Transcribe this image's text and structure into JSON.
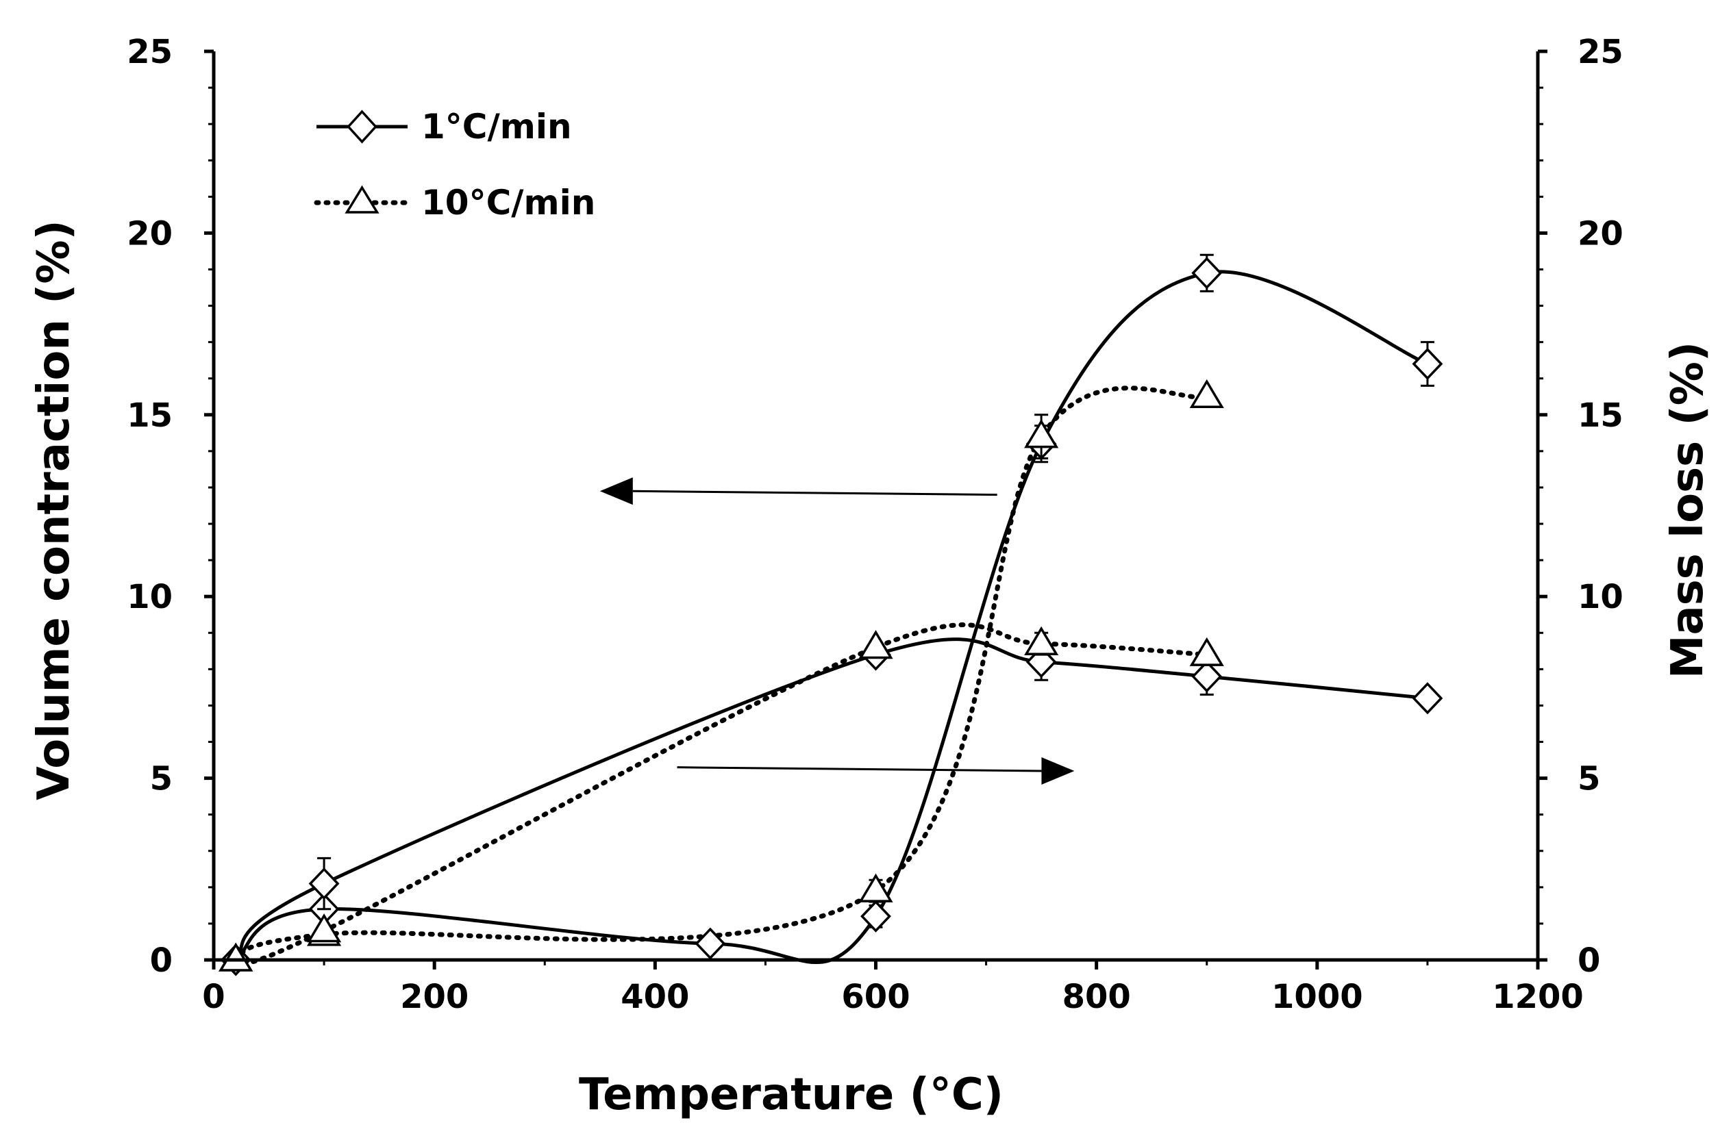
{
  "chart_data": {
    "type": "line",
    "title": "",
    "xlabel": "Temperature (°C)",
    "ylabel_left": "Volume contraction (%)",
    "ylabel_right": "Mass loss (%)",
    "xlim": [
      0,
      1200
    ],
    "ylim_left": [
      0,
      25
    ],
    "ylim_right": [
      0,
      25
    ],
    "x_ticks": [
      "0",
      "200",
      "400",
      "600",
      "800",
      "1000",
      "1200"
    ],
    "x_tick_values": [
      0,
      200,
      400,
      600,
      800,
      1000,
      1200
    ],
    "y_ticks_left": [
      "0",
      "5",
      "10",
      "15",
      "20",
      "25"
    ],
    "y_ticks_right": [
      "0",
      "5",
      "10",
      "15",
      "20",
      "25"
    ],
    "y_tick_values": [
      0,
      5,
      10,
      15,
      20,
      25
    ],
    "grid": false,
    "legend_position": "top-left",
    "series": [
      {
        "name": "1°C/min",
        "quantity": "Volume contraction (%)",
        "axis": "left",
        "style": "solid",
        "marker": "diamond",
        "points": [
          {
            "x": 20,
            "y": 0,
            "err": 0
          },
          {
            "x": 100,
            "y": 1.4,
            "err": 0
          },
          {
            "x": 450,
            "y": 0.45,
            "err": 0
          },
          {
            "x": 600,
            "y": 1.2,
            "err": 0.3
          },
          {
            "x": 750,
            "y": 14.2,
            "err": 0.5
          },
          {
            "x": 900,
            "y": 18.9,
            "err": 0.5
          },
          {
            "x": 1100,
            "y": 16.4,
            "err": 0.6
          }
        ]
      },
      {
        "name": "10°C/min",
        "quantity": "Volume contraction (%)",
        "axis": "left",
        "style": "dotted",
        "marker": "triangle",
        "points": [
          {
            "x": 20,
            "y": 0,
            "err": 0
          },
          {
            "x": 100,
            "y": 0.7,
            "err": 0
          },
          {
            "x": 600,
            "y": 1.9,
            "err": 0.3
          },
          {
            "x": 750,
            "y": 14.4,
            "err": 0.6
          },
          {
            "x": 900,
            "y": 15.5,
            "err": 0
          }
        ]
      },
      {
        "name": "1°C/min",
        "quantity": "Mass loss (%)",
        "axis": "right",
        "style": "solid",
        "marker": "diamond",
        "points": [
          {
            "x": 20,
            "y": 0,
            "err": 0
          },
          {
            "x": 100,
            "y": 2.1,
            "err": 0.7
          },
          {
            "x": 600,
            "y": 8.4,
            "err": 0
          },
          {
            "x": 750,
            "y": 8.2,
            "err": 0.5
          },
          {
            "x": 900,
            "y": 7.8,
            "err": 0.5
          },
          {
            "x": 1100,
            "y": 7.2,
            "err": 0
          }
        ]
      },
      {
        "name": "10°C/min",
        "quantity": "Mass loss (%)",
        "axis": "right",
        "style": "dotted",
        "marker": "triangle",
        "points": [
          {
            "x": 20,
            "y": 0,
            "err": 0
          },
          {
            "x": 100,
            "y": 0.8,
            "err": 0
          },
          {
            "x": 600,
            "y": 8.6,
            "err": 0
          },
          {
            "x": 750,
            "y": 8.7,
            "err": 0.3
          },
          {
            "x": 900,
            "y": 8.4,
            "err": 0
          }
        ]
      }
    ],
    "annotations": [
      {
        "name": "arrow-to-left-axis",
        "direction": "left",
        "from": {
          "x": 710,
          "y": 12.8
        },
        "to": {
          "x": 350,
          "y": 12.9
        }
      },
      {
        "name": "arrow-to-right-axis",
        "direction": "right",
        "from": {
          "x": 420,
          "y": 5.3
        },
        "to": {
          "x": 780,
          "y": 5.2
        }
      }
    ]
  }
}
